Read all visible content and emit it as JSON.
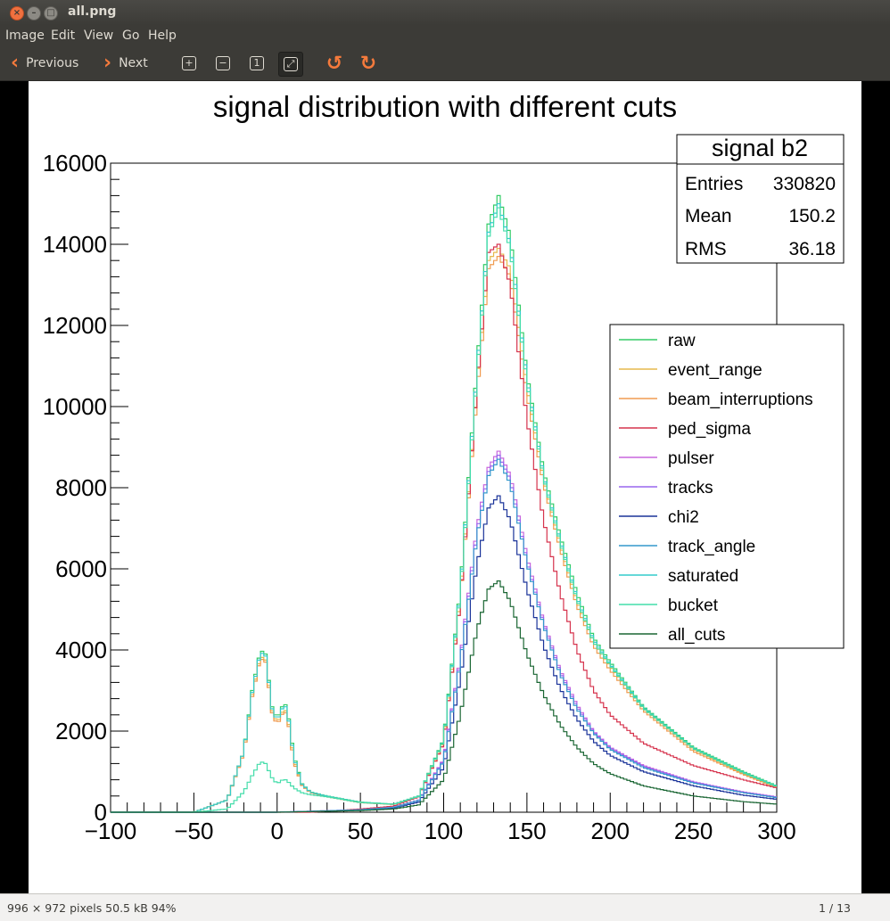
{
  "window": {
    "title": "all.png"
  },
  "menu": [
    "Image",
    "Edit",
    "View",
    "Go",
    "Help"
  ],
  "toolbar": {
    "previous_label": "Previous",
    "next_label": "Next"
  },
  "status": {
    "info": "996 × 972 pixels  50.5 kB   94%",
    "page": "1 / 13"
  },
  "chart_data": {
    "type": "line",
    "title": "signal distribution with different cuts",
    "xlabel": "",
    "ylabel": "",
    "xlim": [
      -100,
      300
    ],
    "ylim": [
      0,
      16000
    ],
    "x_ticks": [
      -100,
      -50,
      0,
      50,
      100,
      150,
      200,
      250,
      300
    ],
    "y_ticks": [
      0,
      2000,
      4000,
      6000,
      8000,
      10000,
      12000,
      14000,
      16000
    ],
    "grid": false,
    "legend_position": "right",
    "stats": {
      "title": "signal b2",
      "rows": [
        {
          "label": "Entries",
          "value": "330820"
        },
        {
          "label": "Mean",
          "value": "150.2"
        },
        {
          "label": "RMS",
          "value": "36.18"
        }
      ]
    },
    "series": [
      {
        "name": "raw",
        "color": "#33cc66",
        "points": [
          [
            -50,
            0
          ],
          [
            -30,
            300
          ],
          [
            -20,
            1500
          ],
          [
            -15,
            3000
          ],
          [
            -10,
            4000
          ],
          [
            -7,
            3900
          ],
          [
            -3,
            2600
          ],
          [
            0,
            2300
          ],
          [
            4,
            2700
          ],
          [
            6,
            2600
          ],
          [
            10,
            1400
          ],
          [
            15,
            700
          ],
          [
            20,
            500
          ],
          [
            30,
            400
          ],
          [
            50,
            250
          ],
          [
            70,
            200
          ],
          [
            85,
            400
          ],
          [
            100,
            1800
          ],
          [
            110,
            5500
          ],
          [
            120,
            11000
          ],
          [
            127,
            14500
          ],
          [
            133,
            15200
          ],
          [
            140,
            14200
          ],
          [
            150,
            10800
          ],
          [
            160,
            8400
          ],
          [
            170,
            6800
          ],
          [
            180,
            5400
          ],
          [
            190,
            4300
          ],
          [
            200,
            3700
          ],
          [
            220,
            2600
          ],
          [
            250,
            1600
          ],
          [
            280,
            1000
          ],
          [
            300,
            650
          ]
        ]
      },
      {
        "name": "event_range",
        "color": "#e6b84d",
        "points": [
          [
            -50,
            0
          ],
          [
            -30,
            300
          ],
          [
            -20,
            1500
          ],
          [
            -15,
            2900
          ],
          [
            -10,
            3850
          ],
          [
            -7,
            3750
          ],
          [
            -3,
            2500
          ],
          [
            0,
            2200
          ],
          [
            4,
            2550
          ],
          [
            6,
            2450
          ],
          [
            10,
            1300
          ],
          [
            15,
            680
          ],
          [
            20,
            490
          ],
          [
            30,
            390
          ],
          [
            50,
            240
          ],
          [
            70,
            195
          ],
          [
            85,
            390
          ],
          [
            100,
            1750
          ],
          [
            110,
            5300
          ],
          [
            120,
            10500
          ],
          [
            127,
            13600
          ],
          [
            133,
            13900
          ],
          [
            140,
            13400
          ],
          [
            150,
            10500
          ],
          [
            160,
            8200
          ],
          [
            170,
            6600
          ],
          [
            180,
            5200
          ],
          [
            190,
            4200
          ],
          [
            200,
            3600
          ],
          [
            220,
            2550
          ],
          [
            250,
            1550
          ],
          [
            280,
            950
          ],
          [
            300,
            620
          ]
        ]
      },
      {
        "name": "beam_interruptions",
        "color": "#f09b50",
        "points": [
          [
            -50,
            0
          ],
          [
            -30,
            300
          ],
          [
            -20,
            1450
          ],
          [
            -15,
            2850
          ],
          [
            -10,
            3800
          ],
          [
            -7,
            3700
          ],
          [
            -3,
            2450
          ],
          [
            0,
            2150
          ],
          [
            4,
            2500
          ],
          [
            6,
            2400
          ],
          [
            10,
            1250
          ],
          [
            15,
            660
          ],
          [
            20,
            480
          ],
          [
            30,
            380
          ],
          [
            50,
            235
          ],
          [
            70,
            190
          ],
          [
            85,
            380
          ],
          [
            100,
            1700
          ],
          [
            110,
            5200
          ],
          [
            120,
            10300
          ],
          [
            127,
            13400
          ],
          [
            133,
            13700
          ],
          [
            140,
            13200
          ],
          [
            150,
            10300
          ],
          [
            160,
            8100
          ],
          [
            170,
            6500
          ],
          [
            180,
            5100
          ],
          [
            190,
            4100
          ],
          [
            200,
            3500
          ],
          [
            220,
            2500
          ],
          [
            250,
            1500
          ],
          [
            280,
            930
          ],
          [
            300,
            600
          ]
        ]
      },
      {
        "name": "ped_sigma",
        "color": "#d6334d",
        "points": [
          [
            -50,
            0
          ],
          [
            -30,
            0
          ],
          [
            -20,
            0
          ],
          [
            0,
            0
          ],
          [
            20,
            0
          ],
          [
            50,
            80
          ],
          [
            70,
            150
          ],
          [
            85,
            380
          ],
          [
            100,
            1700
          ],
          [
            110,
            5200
          ],
          [
            120,
            10500
          ],
          [
            127,
            13800
          ],
          [
            133,
            14000
          ],
          [
            140,
            13000
          ],
          [
            150,
            9700
          ],
          [
            160,
            7200
          ],
          [
            170,
            5400
          ],
          [
            180,
            4000
          ],
          [
            190,
            3000
          ],
          [
            200,
            2400
          ],
          [
            220,
            1700
          ],
          [
            250,
            1150
          ],
          [
            280,
            800
          ],
          [
            300,
            600
          ]
        ]
      },
      {
        "name": "pulser",
        "color": "#c866dd",
        "points": [
          [
            -50,
            0
          ],
          [
            0,
            0
          ],
          [
            50,
            60
          ],
          [
            70,
            120
          ],
          [
            85,
            300
          ],
          [
            100,
            1300
          ],
          [
            110,
            3800
          ],
          [
            120,
            7000
          ],
          [
            127,
            8500
          ],
          [
            133,
            8900
          ],
          [
            140,
            8300
          ],
          [
            150,
            6300
          ],
          [
            160,
            4700
          ],
          [
            170,
            3500
          ],
          [
            180,
            2650
          ],
          [
            190,
            2000
          ],
          [
            200,
            1600
          ],
          [
            220,
            1150
          ],
          [
            250,
            750
          ],
          [
            280,
            500
          ],
          [
            300,
            380
          ]
        ]
      },
      {
        "name": "tracks",
        "color": "#9966ee",
        "points": [
          [
            -50,
            0
          ],
          [
            0,
            0
          ],
          [
            50,
            60
          ],
          [
            70,
            120
          ],
          [
            85,
            290
          ],
          [
            100,
            1280
          ],
          [
            110,
            3750
          ],
          [
            120,
            6900
          ],
          [
            127,
            8400
          ],
          [
            133,
            8800
          ],
          [
            140,
            8200
          ],
          [
            150,
            6200
          ],
          [
            160,
            4650
          ],
          [
            170,
            3450
          ],
          [
            180,
            2600
          ],
          [
            190,
            1980
          ],
          [
            200,
            1580
          ],
          [
            220,
            1130
          ],
          [
            250,
            740
          ],
          [
            280,
            490
          ],
          [
            300,
            370
          ]
        ]
      },
      {
        "name": "chi2",
        "color": "#1a3399",
        "points": [
          [
            -50,
            0
          ],
          [
            0,
            0
          ],
          [
            50,
            50
          ],
          [
            70,
            100
          ],
          [
            85,
            250
          ],
          [
            100,
            1100
          ],
          [
            110,
            3300
          ],
          [
            120,
            6100
          ],
          [
            127,
            7500
          ],
          [
            133,
            7800
          ],
          [
            140,
            7200
          ],
          [
            150,
            5500
          ],
          [
            160,
            4100
          ],
          [
            170,
            3050
          ],
          [
            180,
            2300
          ],
          [
            190,
            1750
          ],
          [
            200,
            1400
          ],
          [
            220,
            1000
          ],
          [
            250,
            650
          ],
          [
            280,
            420
          ],
          [
            300,
            320
          ]
        ]
      },
      {
        "name": "track_angle",
        "color": "#3399cc",
        "points": [
          [
            -50,
            0
          ],
          [
            0,
            0
          ],
          [
            50,
            60
          ],
          [
            70,
            120
          ],
          [
            85,
            290
          ],
          [
            100,
            1250
          ],
          [
            110,
            3700
          ],
          [
            120,
            6800
          ],
          [
            127,
            8300
          ],
          [
            133,
            8700
          ],
          [
            140,
            8100
          ],
          [
            150,
            6150
          ],
          [
            160,
            4600
          ],
          [
            170,
            3400
          ],
          [
            180,
            2550
          ],
          [
            190,
            1950
          ],
          [
            200,
            1550
          ],
          [
            220,
            1100
          ],
          [
            250,
            720
          ],
          [
            280,
            480
          ],
          [
            300,
            360
          ]
        ]
      },
      {
        "name": "saturated",
        "color": "#33cccc",
        "points": [
          [
            -50,
            0
          ],
          [
            -30,
            300
          ],
          [
            -20,
            1500
          ],
          [
            -15,
            2950
          ],
          [
            -10,
            3950
          ],
          [
            -7,
            3850
          ],
          [
            -3,
            2550
          ],
          [
            0,
            2250
          ],
          [
            4,
            2650
          ],
          [
            6,
            2550
          ],
          [
            10,
            1350
          ],
          [
            15,
            690
          ],
          [
            20,
            495
          ],
          [
            30,
            395
          ],
          [
            50,
            245
          ],
          [
            70,
            198
          ],
          [
            85,
            395
          ],
          [
            100,
            1780
          ],
          [
            110,
            5450
          ],
          [
            120,
            10900
          ],
          [
            127,
            14300
          ],
          [
            133,
            15000
          ],
          [
            140,
            14000
          ],
          [
            150,
            10700
          ],
          [
            160,
            8300
          ],
          [
            170,
            6700
          ],
          [
            180,
            5300
          ],
          [
            190,
            4250
          ],
          [
            200,
            3650
          ],
          [
            220,
            2580
          ],
          [
            250,
            1580
          ],
          [
            280,
            980
          ],
          [
            300,
            640
          ]
        ]
      },
      {
        "name": "bucket",
        "color": "#44ddaa",
        "points": [
          [
            -50,
            0
          ],
          [
            -30,
            80
          ],
          [
            -20,
            500
          ],
          [
            -15,
            900
          ],
          [
            -10,
            1250
          ],
          [
            -7,
            1200
          ],
          [
            -3,
            850
          ],
          [
            0,
            700
          ],
          [
            4,
            820
          ],
          [
            6,
            780
          ],
          [
            10,
            600
          ],
          [
            15,
            480
          ],
          [
            20,
            430
          ],
          [
            30,
            380
          ],
          [
            50,
            240
          ],
          [
            70,
            195
          ],
          [
            85,
            390
          ],
          [
            100,
            1770
          ],
          [
            110,
            5400
          ],
          [
            120,
            10800
          ],
          [
            127,
            14200
          ],
          [
            133,
            14900
          ],
          [
            140,
            13900
          ],
          [
            150,
            10600
          ],
          [
            160,
            8250
          ],
          [
            170,
            6650
          ],
          [
            180,
            5250
          ],
          [
            190,
            4200
          ],
          [
            200,
            3620
          ],
          [
            220,
            2560
          ],
          [
            250,
            1570
          ],
          [
            280,
            970
          ],
          [
            300,
            630
          ]
        ]
      },
      {
        "name": "all_cuts",
        "color": "#1a6633",
        "points": [
          [
            -50,
            0
          ],
          [
            0,
            0
          ],
          [
            50,
            40
          ],
          [
            70,
            80
          ],
          [
            85,
            180
          ],
          [
            100,
            800
          ],
          [
            110,
            2400
          ],
          [
            120,
            4500
          ],
          [
            127,
            5500
          ],
          [
            133,
            5700
          ],
          [
            140,
            5200
          ],
          [
            150,
            3900
          ],
          [
            160,
            2900
          ],
          [
            170,
            2150
          ],
          [
            180,
            1600
          ],
          [
            190,
            1200
          ],
          [
            200,
            950
          ],
          [
            220,
            650
          ],
          [
            250,
            400
          ],
          [
            280,
            260
          ],
          [
            300,
            200
          ]
        ]
      }
    ]
  }
}
